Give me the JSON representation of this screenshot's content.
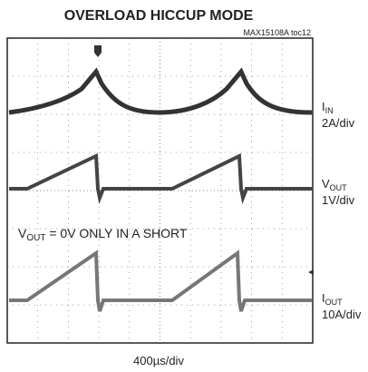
{
  "title": "OVERLOAD HICCUP MODE",
  "tag": "MAX15108A toc12",
  "annotation": {
    "main": "V",
    "sub": "OUT",
    "rest": " = 0V ONLY IN A SHORT"
  },
  "channels": [
    {
      "symbol": "I",
      "sub": "IN",
      "scale": "2A/div"
    },
    {
      "symbol": "V",
      "sub": "OUT",
      "scale": "1V/div"
    },
    {
      "symbol": "I",
      "sub": "OUT",
      "scale": "10A/div"
    }
  ],
  "timebase": "400µs/div"
}
